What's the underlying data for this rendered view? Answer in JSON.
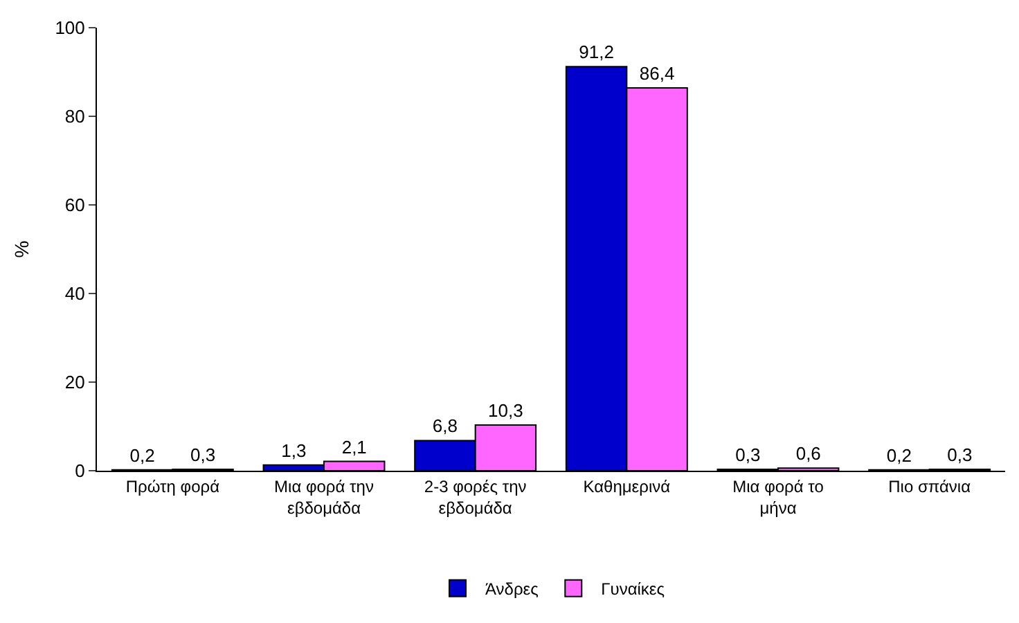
{
  "chart_data": {
    "type": "bar",
    "ylabel": "%",
    "categories": [
      "Πρώτη φορά",
      "Μια φορά την\nεβδομάδα",
      "2-3 φορές την\nεβδομάδα",
      "Καθημερινά",
      "Μια φορά το\nμήνα",
      "Πιο σπάνια"
    ],
    "series": [
      {
        "name": "Άνδρες",
        "color": "#0000cc",
        "values": [
          0.2,
          1.3,
          6.8,
          91.2,
          0.3,
          0.2
        ],
        "value_labels": [
          "0,2",
          "1,3",
          "6,8",
          "91,2",
          "0,3",
          "0,2"
        ]
      },
      {
        "name": "Γυναίκες",
        "color": "#ff66ff",
        "values": [
          0.3,
          2.1,
          10.3,
          86.4,
          0.6,
          0.3
        ],
        "value_labels": [
          "0,3",
          "2,1",
          "10,3",
          "86,4",
          "0,6",
          "0,3"
        ]
      }
    ],
    "ylim": [
      0,
      100
    ],
    "yticks": [
      0,
      20,
      40,
      60,
      80,
      100
    ],
    "grid": false,
    "legend": "bottom"
  }
}
